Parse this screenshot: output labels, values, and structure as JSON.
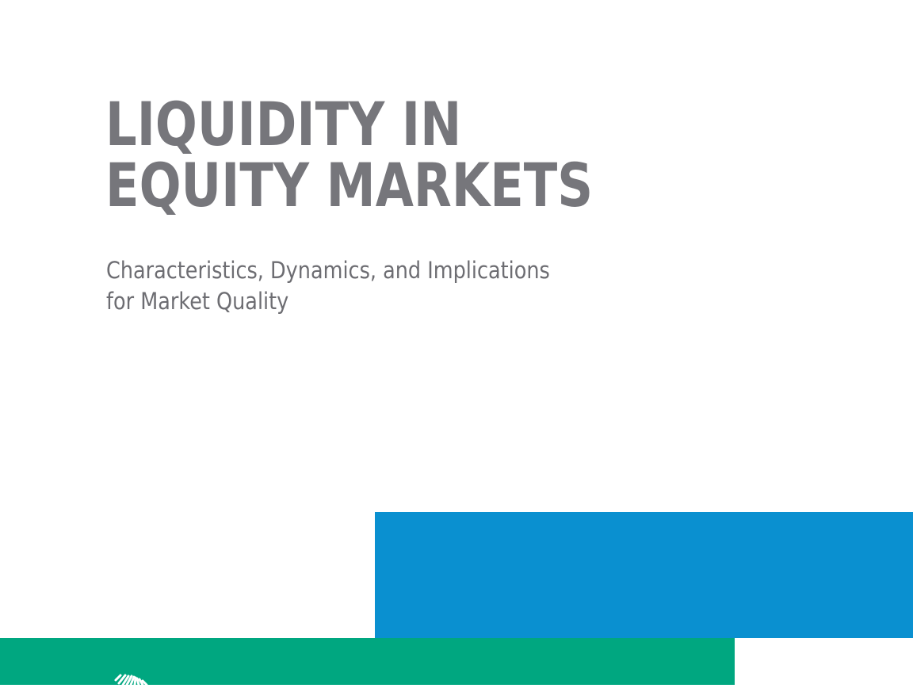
{
  "cover": {
    "title_line1": "LIQUIDITY IN",
    "title_line2": "EQUITY MARKETS",
    "subtitle_line1": "Characteristics, Dynamics, and Implications",
    "subtitle_line2": "for Market Quality"
  },
  "colors": {
    "title": "#76767b",
    "subtitle": "#6d6d72",
    "blue_block": "#0a90d0",
    "green_block": "#00a780",
    "logo": "#ffffff"
  },
  "icons": {
    "logo": "publisher-logo-mark"
  }
}
